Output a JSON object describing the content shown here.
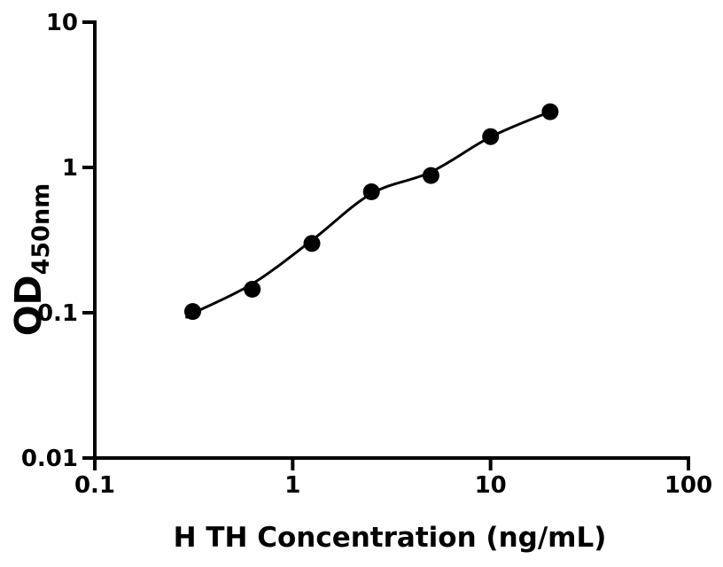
{
  "figure": {
    "background": "#ffffff"
  },
  "chart_data": {
    "type": "scatter",
    "title": "",
    "xlabel": "H TH Concentration (ng/mL)",
    "ylabel_main": "OD",
    "ylabel_sub": "450nm",
    "ylabel": "OD450nm",
    "xscale": "log",
    "yscale": "log",
    "xlim": [
      0.1,
      100
    ],
    "ylim": [
      0.01,
      10
    ],
    "grid": false,
    "legend": "none",
    "axis_color": "#000000",
    "marker_color": "#000000",
    "curve_color": "#000000",
    "x_ticks": [
      {
        "value": 0.1,
        "label": "0.1"
      },
      {
        "value": 1,
        "label": "1"
      },
      {
        "value": 10,
        "label": "10"
      },
      {
        "value": 100,
        "label": "100"
      }
    ],
    "y_ticks": [
      {
        "value": 0.01,
        "label": "0.01"
      },
      {
        "value": 0.1,
        "label": "0.1"
      },
      {
        "value": 1,
        "label": "1"
      },
      {
        "value": 10,
        "label": "10"
      }
    ],
    "points": [
      {
        "x": 0.3125,
        "y": 0.102
      },
      {
        "x": 0.625,
        "y": 0.145
      },
      {
        "x": 1.25,
        "y": 0.3
      },
      {
        "x": 2.5,
        "y": 0.68
      },
      {
        "x": 5,
        "y": 0.88
      },
      {
        "x": 10,
        "y": 1.63
      },
      {
        "x": 20,
        "y": 2.42
      }
    ],
    "fit_curve": [
      {
        "x": 0.295,
        "y": 0.093
      },
      {
        "x": 0.3125,
        "y": 0.099
      },
      {
        "x": 0.625,
        "y": 0.158
      },
      {
        "x": 1.25,
        "y": 0.315
      },
      {
        "x": 2.5,
        "y": 0.66
      },
      {
        "x": 5,
        "y": 0.93
      },
      {
        "x": 10,
        "y": 1.62
      },
      {
        "x": 20,
        "y": 2.42
      }
    ]
  }
}
